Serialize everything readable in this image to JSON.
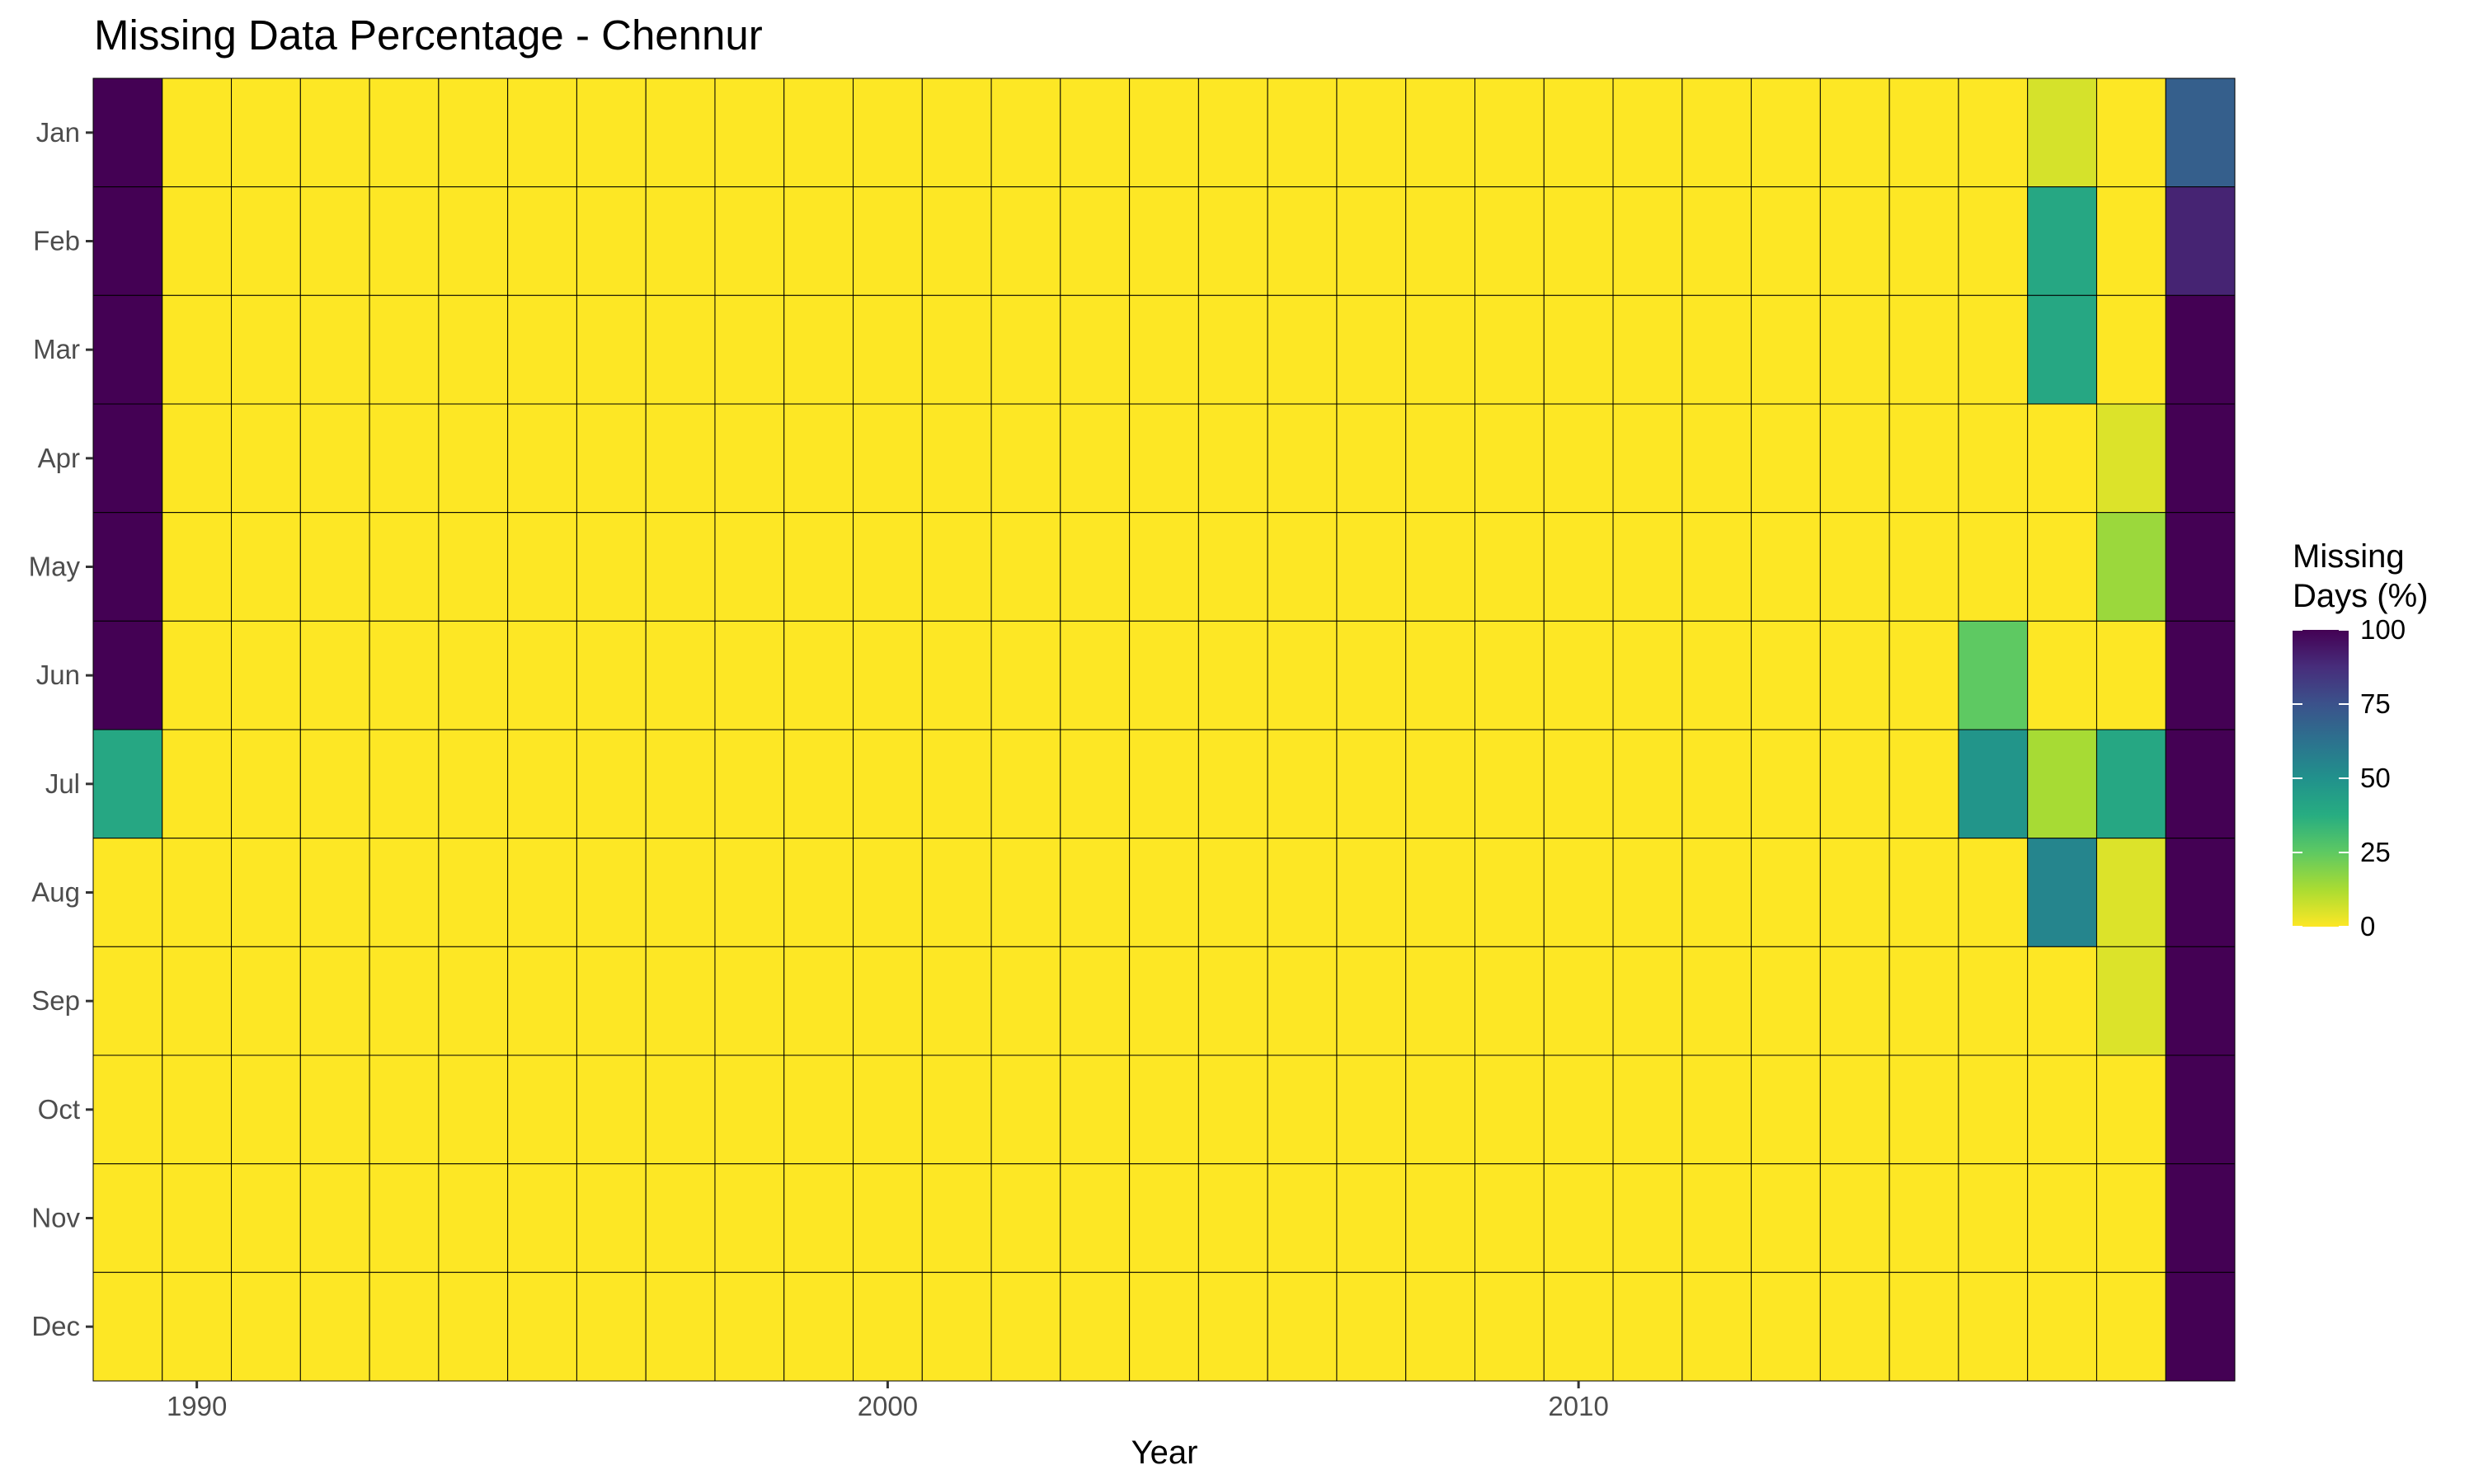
{
  "chart_data": {
    "type": "heatmap",
    "title": "Missing Data Percentage - Chennur",
    "xlabel": "Year",
    "ylabel": "",
    "x": [
      1989,
      1990,
      1991,
      1992,
      1993,
      1994,
      1995,
      1996,
      1997,
      1998,
      1999,
      2000,
      2001,
      2002,
      2003,
      2004,
      2005,
      2006,
      2007,
      2008,
      2009,
      2010,
      2011,
      2012,
      2013,
      2014,
      2015,
      2016,
      2017,
      2018,
      2019
    ],
    "y": [
      "Jan",
      "Feb",
      "Mar",
      "Apr",
      "May",
      "Jun",
      "Jul",
      "Aug",
      "Sep",
      "Oct",
      "Nov",
      "Dec"
    ],
    "x_ticks": [
      1990,
      2000,
      2010
    ],
    "x_tick_labels": [
      "1990",
      "2000",
      "2010"
    ],
    "values": [
      [
        100,
        0,
        0,
        0,
        0,
        0,
        0,
        0,
        0,
        0,
        0,
        0,
        0,
        0,
        0,
        0,
        0,
        0,
        0,
        0,
        0,
        0,
        0,
        0,
        0,
        0,
        0,
        0,
        6,
        0,
        70
      ],
      [
        100,
        0,
        0,
        0,
        0,
        0,
        0,
        0,
        0,
        0,
        0,
        0,
        0,
        0,
        0,
        0,
        0,
        0,
        0,
        0,
        0,
        0,
        0,
        0,
        0,
        0,
        0,
        0,
        40,
        0,
        90
      ],
      [
        100,
        0,
        0,
        0,
        0,
        0,
        0,
        0,
        0,
        0,
        0,
        0,
        0,
        0,
        0,
        0,
        0,
        0,
        0,
        0,
        0,
        0,
        0,
        0,
        0,
        0,
        0,
        0,
        40,
        0,
        100
      ],
      [
        100,
        0,
        0,
        0,
        0,
        0,
        0,
        0,
        0,
        0,
        0,
        0,
        0,
        0,
        0,
        0,
        0,
        0,
        0,
        0,
        0,
        0,
        0,
        0,
        0,
        0,
        0,
        0,
        0,
        5,
        100
      ],
      [
        100,
        0,
        0,
        0,
        0,
        0,
        0,
        0,
        0,
        0,
        0,
        0,
        0,
        0,
        0,
        0,
        0,
        0,
        0,
        0,
        0,
        0,
        0,
        0,
        0,
        0,
        0,
        0,
        0,
        15,
        100
      ],
      [
        100,
        0,
        0,
        0,
        0,
        0,
        0,
        0,
        0,
        0,
        0,
        0,
        0,
        0,
        0,
        0,
        0,
        0,
        0,
        0,
        0,
        0,
        0,
        0,
        0,
        0,
        0,
        25,
        0,
        0,
        100
      ],
      [
        40,
        0,
        0,
        0,
        0,
        0,
        0,
        0,
        0,
        0,
        0,
        0,
        0,
        0,
        0,
        0,
        0,
        0,
        0,
        0,
        0,
        0,
        0,
        0,
        0,
        0,
        0,
        48,
        13,
        40,
        100
      ],
      [
        0,
        0,
        0,
        0,
        0,
        0,
        0,
        0,
        0,
        0,
        0,
        0,
        0,
        0,
        0,
        0,
        0,
        0,
        0,
        0,
        0,
        0,
        0,
        0,
        0,
        0,
        0,
        0,
        55,
        5,
        100
      ],
      [
        0,
        0,
        0,
        0,
        0,
        0,
        0,
        0,
        0,
        0,
        0,
        0,
        0,
        0,
        0,
        0,
        0,
        0,
        0,
        0,
        0,
        0,
        0,
        0,
        0,
        0,
        0,
        0,
        0,
        5,
        100
      ],
      [
        0,
        0,
        0,
        0,
        0,
        0,
        0,
        0,
        0,
        0,
        0,
        0,
        0,
        0,
        0,
        0,
        0,
        0,
        0,
        0,
        0,
        0,
        0,
        0,
        0,
        0,
        0,
        0,
        0,
        0,
        100
      ],
      [
        0,
        0,
        0,
        0,
        0,
        0,
        0,
        0,
        0,
        0,
        0,
        0,
        0,
        0,
        0,
        0,
        0,
        0,
        0,
        0,
        0,
        0,
        0,
        0,
        0,
        0,
        0,
        0,
        0,
        0,
        100
      ],
      [
        0,
        0,
        0,
        0,
        0,
        0,
        0,
        0,
        0,
        0,
        0,
        0,
        0,
        0,
        0,
        0,
        0,
        0,
        0,
        0,
        0,
        0,
        0,
        0,
        0,
        0,
        0,
        0,
        0,
        0,
        100
      ]
    ],
    "value_range": [
      0,
      100
    ],
    "colormap": "viridis (reversed: 0 = yellow, 100 = dark purple)",
    "legend": {
      "title_lines": [
        "Missing",
        "Days (%)"
      ],
      "ticks": [
        100,
        75,
        50,
        25,
        0
      ],
      "tick_labels": [
        "100",
        "75",
        "50",
        "25",
        "0"
      ],
      "position": "right"
    },
    "grid": false,
    "cell_border_color": "#000000"
  }
}
